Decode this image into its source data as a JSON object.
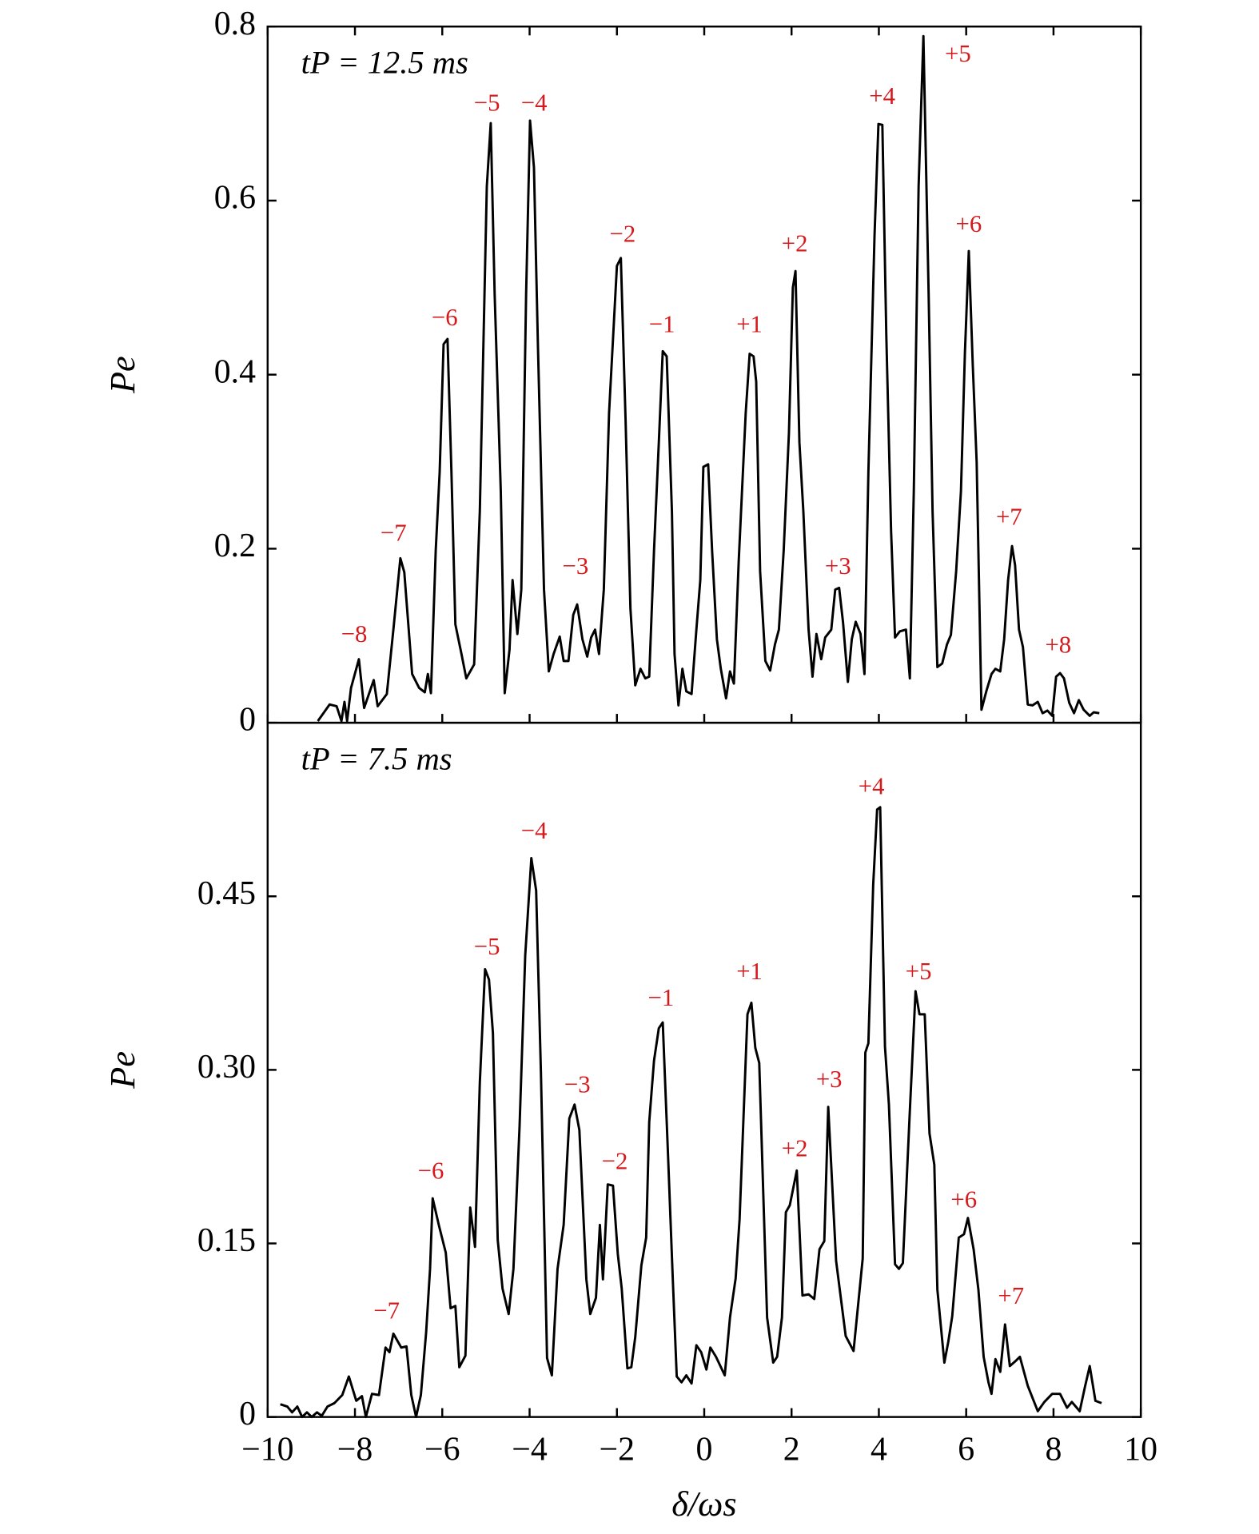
{
  "chart_data": [
    {
      "type": "line",
      "title": "tP = 12.5 ms",
      "ylabel": "Pe",
      "color": "#000000",
      "annotation_color": "#d7191c",
      "xlim": [
        -10,
        10
      ],
      "ylim": [
        0,
        0.8
      ],
      "yticks": [
        0,
        0.2,
        0.4,
        0.6,
        0.8
      ],
      "annotations": [
        "−8",
        "−7",
        "−6",
        "−5",
        "−4",
        "−3",
        "−2",
        "−1",
        "+1",
        "+2",
        "+3",
        "+4",
        "+5",
        "+6",
        "+7",
        "+8"
      ],
      "x": [
        -8.85,
        -8.58,
        -8.42,
        -8.31,
        -8.24,
        -8.18,
        -8.09,
        -7.91,
        -7.79,
        -7.57,
        -7.48,
        -7.27,
        -7.12,
        -6.96,
        -6.87,
        -6.69,
        -6.53,
        -6.4,
        -6.33,
        -6.26,
        -6.15,
        -6.06,
        -5.97,
        -5.88,
        -5.79,
        -5.7,
        -5.56,
        -5.45,
        -5.27,
        -5.14,
        -4.98,
        -4.89,
        -4.8,
        -4.66,
        -4.57,
        -4.46,
        -4.39,
        -4.28,
        -4.19,
        -4.08,
        -3.99,
        -3.9,
        -3.81,
        -3.67,
        -3.56,
        -3.45,
        -3.31,
        -3.22,
        -3.11,
        -3.0,
        -2.91,
        -2.79,
        -2.68,
        -2.59,
        -2.5,
        -2.41,
        -2.3,
        -2.18,
        -2.0,
        -1.91,
        -1.8,
        -1.69,
        -1.58,
        -1.46,
        -1.35,
        -1.26,
        -1.15,
        -1.04,
        -0.95,
        -0.86,
        -0.74,
        -0.68,
        -0.59,
        -0.5,
        -0.41,
        -0.29,
        -0.18,
        -0.09,
        -0.02,
        0.09,
        0.18,
        0.29,
        0.38,
        0.5,
        0.59,
        0.68,
        0.79,
        0.95,
        1.04,
        1.13,
        1.19,
        1.28,
        1.4,
        1.51,
        1.62,
        1.71,
        1.82,
        1.94,
        2.03,
        2.09,
        2.18,
        2.27,
        2.39,
        2.48,
        2.57,
        2.68,
        2.77,
        2.91,
        3.0,
        3.09,
        3.18,
        3.29,
        3.38,
        3.47,
        3.58,
        3.67,
        3.76,
        3.9,
        3.99,
        4.08,
        4.17,
        4.28,
        4.37,
        4.48,
        4.62,
        4.71,
        4.8,
        4.91,
        5.02,
        5.14,
        5.23,
        5.34,
        5.45,
        5.56,
        5.65,
        5.77,
        5.88,
        5.97,
        6.06,
        6.15,
        6.24,
        6.35,
        6.46,
        6.58,
        6.67,
        6.78,
        6.87,
        6.96,
        7.05,
        7.12,
        7.21,
        7.3,
        7.41,
        7.52,
        7.64,
        7.75,
        7.86,
        7.97,
        8.06,
        8.15,
        8.24,
        8.36,
        8.47,
        8.58,
        8.69,
        8.83,
        8.92,
        9.05
      ],
      "values": [
        0.002,
        0.021,
        0.019,
        0.002,
        0.024,
        0.002,
        0.04,
        0.073,
        0.017,
        0.049,
        0.019,
        0.033,
        0.107,
        0.189,
        0.173,
        0.056,
        0.04,
        0.035,
        0.056,
        0.034,
        0.198,
        0.288,
        0.435,
        0.441,
        0.288,
        0.113,
        0.079,
        0.051,
        0.067,
        0.243,
        0.616,
        0.689,
        0.492,
        0.266,
        0.034,
        0.084,
        0.164,
        0.102,
        0.153,
        0.492,
        0.692,
        0.638,
        0.435,
        0.153,
        0.059,
        0.079,
        0.099,
        0.071,
        0.071,
        0.124,
        0.136,
        0.096,
        0.076,
        0.098,
        0.107,
        0.079,
        0.153,
        0.356,
        0.525,
        0.534,
        0.345,
        0.131,
        0.043,
        0.062,
        0.051,
        0.053,
        0.198,
        0.322,
        0.427,
        0.421,
        0.243,
        0.079,
        0.02,
        0.062,
        0.036,
        0.033,
        0.107,
        0.164,
        0.294,
        0.297,
        0.198,
        0.096,
        0.062,
        0.028,
        0.059,
        0.045,
        0.186,
        0.356,
        0.424,
        0.421,
        0.392,
        0.174,
        0.071,
        0.06,
        0.09,
        0.107,
        0.198,
        0.333,
        0.5,
        0.519,
        0.322,
        0.243,
        0.107,
        0.053,
        0.102,
        0.073,
        0.098,
        0.107,
        0.153,
        0.155,
        0.115,
        0.047,
        0.096,
        0.116,
        0.102,
        0.056,
        0.288,
        0.559,
        0.688,
        0.687,
        0.446,
        0.22,
        0.098,
        0.105,
        0.107,
        0.051,
        0.266,
        0.616,
        0.789,
        0.492,
        0.243,
        0.064,
        0.068,
        0.09,
        0.101,
        0.174,
        0.266,
        0.424,
        0.542,
        0.412,
        0.299,
        0.015,
        0.036,
        0.056,
        0.062,
        0.059,
        0.096,
        0.164,
        0.203,
        0.181,
        0.107,
        0.087,
        0.021,
        0.02,
        0.024,
        0.011,
        0.014,
        0.008,
        0.053,
        0.057,
        0.051,
        0.023,
        0.011,
        0.026,
        0.015,
        0.008,
        0.012,
        0.011
      ]
    },
    {
      "type": "line",
      "title": "tP = 7.5 ms",
      "ylabel": "Pe",
      "xlabel": "δ/ωs",
      "color": "#000000",
      "annotation_color": "#d7191c",
      "xlim": [
        -10,
        10
      ],
      "ylim": [
        0,
        0.6
      ],
      "yticks": [
        0,
        0.15,
        {
          "value": 0.3,
          "label": "0.30"
        },
        0.45
      ],
      "xticks": [
        {
          "value": -10,
          "label": "−10"
        },
        {
          "value": -8,
          "label": "−8"
        },
        {
          "value": -6,
          "label": "−6"
        },
        {
          "value": -4,
          "label": "−4"
        },
        {
          "value": -2,
          "label": "−2"
        },
        0,
        2,
        4,
        6,
        8,
        10
      ],
      "annotations": [
        "−7",
        "−6",
        "−5",
        "−4",
        "−3",
        "−2",
        "−1",
        "+1",
        "+2",
        "+3",
        "+4",
        "+5",
        "+6",
        "+7"
      ],
      "x": [
        -9.71,
        -9.55,
        -9.44,
        -9.32,
        -9.21,
        -9.1,
        -8.99,
        -8.87,
        -8.76,
        -8.63,
        -8.47,
        -8.29,
        -8.14,
        -7.97,
        -7.84,
        -7.75,
        -7.61,
        -7.45,
        -7.3,
        -7.21,
        -7.12,
        -6.94,
        -6.82,
        -6.71,
        -6.6,
        -6.49,
        -6.37,
        -6.28,
        -6.22,
        -6.08,
        -5.92,
        -5.81,
        -5.7,
        -5.61,
        -5.47,
        -5.36,
        -5.25,
        -5.14,
        -5.02,
        -4.93,
        -4.84,
        -4.73,
        -4.62,
        -4.48,
        -4.37,
        -4.23,
        -4.1,
        -3.96,
        -3.85,
        -3.74,
        -3.6,
        -3.49,
        -3.36,
        -3.22,
        -3.09,
        -2.97,
        -2.86,
        -2.7,
        -2.61,
        -2.48,
        -2.39,
        -2.32,
        -2.21,
        -2.09,
        -1.98,
        -1.89,
        -1.76,
        -1.67,
        -1.58,
        -1.44,
        -1.33,
        -1.26,
        -1.15,
        -1.04,
        -0.95,
        -0.83,
        -0.72,
        -0.63,
        -0.52,
        -0.41,
        -0.29,
        -0.18,
        -0.07,
        0.05,
        0.14,
        0.27,
        0.47,
        0.59,
        0.72,
        0.81,
        0.99,
        1.08,
        1.17,
        1.26,
        1.44,
        1.58,
        1.67,
        1.78,
        1.87,
        1.96,
        2.12,
        2.25,
        2.39,
        2.52,
        2.64,
        2.75,
        2.84,
        3.02,
        3.24,
        3.42,
        3.63,
        3.69,
        3.76,
        3.87,
        3.96,
        4.03,
        4.14,
        4.23,
        4.37,
        4.46,
        4.55,
        4.71,
        4.84,
        4.93,
        5.05,
        5.16,
        5.27,
        5.34,
        5.5,
        5.59,
        5.68,
        5.83,
        5.95,
        6.04,
        6.17,
        6.28,
        6.4,
        6.51,
        6.58,
        6.67,
        6.78,
        6.89,
        7.0,
        7.12,
        7.23,
        7.41,
        7.64,
        7.79,
        7.97,
        8.15,
        8.31,
        8.42,
        8.6,
        8.72,
        8.83,
        8.96,
        9.1
      ],
      "values": [
        0.011,
        0.009,
        0.004,
        0.009,
        0.0,
        0.004,
        0.0,
        0.004,
        0.001,
        0.009,
        0.012,
        0.019,
        0.035,
        0.014,
        0.018,
        0.0,
        0.02,
        0.019,
        0.06,
        0.056,
        0.072,
        0.06,
        0.061,
        0.019,
        0.0,
        0.019,
        0.073,
        0.128,
        0.189,
        0.166,
        0.142,
        0.094,
        0.096,
        0.043,
        0.053,
        0.181,
        0.147,
        0.289,
        0.387,
        0.378,
        0.332,
        0.153,
        0.111,
        0.089,
        0.128,
        0.251,
        0.399,
        0.483,
        0.455,
        0.297,
        0.051,
        0.036,
        0.128,
        0.166,
        0.258,
        0.27,
        0.248,
        0.119,
        0.089,
        0.103,
        0.166,
        0.119,
        0.201,
        0.2,
        0.141,
        0.111,
        0.042,
        0.043,
        0.069,
        0.131,
        0.155,
        0.255,
        0.308,
        0.336,
        0.341,
        0.227,
        0.119,
        0.035,
        0.03,
        0.036,
        0.029,
        0.062,
        0.056,
        0.041,
        0.06,
        0.052,
        0.036,
        0.086,
        0.12,
        0.171,
        0.348,
        0.358,
        0.319,
        0.306,
        0.086,
        0.047,
        0.052,
        0.086,
        0.177,
        0.183,
        0.213,
        0.105,
        0.106,
        0.102,
        0.145,
        0.152,
        0.268,
        0.135,
        0.07,
        0.057,
        0.137,
        0.315,
        0.323,
        0.46,
        0.525,
        0.527,
        0.32,
        0.27,
        0.132,
        0.128,
        0.133,
        0.265,
        0.368,
        0.348,
        0.348,
        0.245,
        0.218,
        0.11,
        0.047,
        0.065,
        0.087,
        0.155,
        0.158,
        0.172,
        0.145,
        0.11,
        0.052,
        0.03,
        0.02,
        0.05,
        0.039,
        0.08,
        0.044,
        0.048,
        0.052,
        0.027,
        0.005,
        0.013,
        0.02,
        0.02,
        0.008,
        0.013,
        0.005,
        0.026,
        0.044,
        0.014,
        0.012
      ]
    }
  ]
}
